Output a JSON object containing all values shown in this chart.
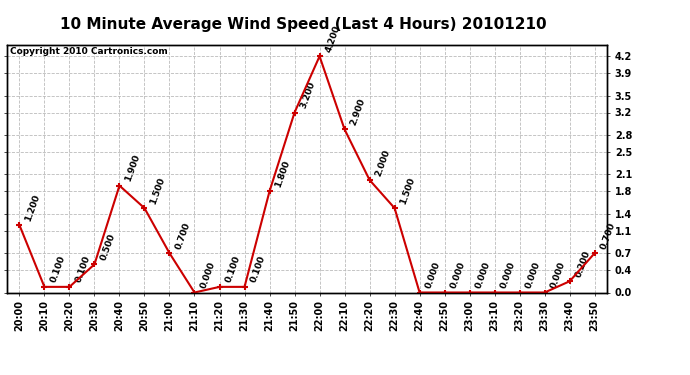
{
  "title": "10 Minute Average Wind Speed (Last 4 Hours) 20101210",
  "copyright": "Copyright 2010 Cartronics.com",
  "x_labels": [
    "20:00",
    "20:10",
    "20:20",
    "20:30",
    "20:40",
    "20:50",
    "21:00",
    "21:10",
    "21:20",
    "21:30",
    "21:40",
    "21:50",
    "22:00",
    "22:10",
    "22:20",
    "22:30",
    "22:40",
    "22:50",
    "23:00",
    "23:10",
    "23:20",
    "23:30",
    "23:40",
    "23:50"
  ],
  "y_values": [
    1.2,
    0.1,
    0.1,
    0.5,
    1.9,
    1.5,
    0.7,
    0.0,
    0.1,
    0.1,
    1.8,
    3.2,
    4.2,
    2.9,
    2.0,
    1.5,
    0.0,
    0.0,
    0.0,
    0.0,
    0.0,
    0.0,
    0.2,
    0.7
  ],
  "line_color": "#cc0000",
  "marker_color": "#cc0000",
  "background_color": "#ffffff",
  "grid_color": "#bbbbbb",
  "ylim": [
    0.0,
    4.4
  ],
  "yticks": [
    0.0,
    0.4,
    0.7,
    1.1,
    1.4,
    1.8,
    2.1,
    2.5,
    2.8,
    3.2,
    3.5,
    3.9,
    4.2
  ],
  "title_fontsize": 11,
  "label_fontsize": 7,
  "annotation_fontsize": 6.5,
  "border_color": "#000000"
}
